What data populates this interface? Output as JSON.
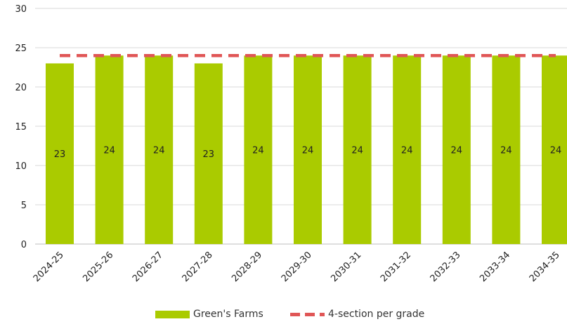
{
  "chart_data": {
    "type": "bar",
    "categories": [
      "2024-25",
      "2025-26",
      "2026-27",
      "2027-28",
      "2028-29",
      "2029-30",
      "2030-31",
      "2031-32",
      "2032-33",
      "2033-34",
      "2034-35"
    ],
    "series": [
      {
        "name": "Green's Farms",
        "kind": "bar",
        "color": "#aacb00",
        "values": [
          23,
          24,
          24,
          23,
          24,
          24,
          24,
          24,
          24,
          24,
          24
        ]
      },
      {
        "name": "4-section per grade",
        "kind": "dashed-line",
        "color": "#e05656",
        "values": [
          24,
          24,
          24,
          24,
          24,
          24,
          24,
          24,
          24,
          24,
          24
        ]
      }
    ],
    "data_labels": [
      "23",
      "24",
      "24",
      "23",
      "24",
      "24",
      "24",
      "24",
      "24",
      "24",
      "24"
    ],
    "ylim": [
      0,
      30
    ],
    "yticks": [
      "0",
      "5",
      "10",
      "15",
      "20",
      "25",
      "30"
    ],
    "grid": true,
    "legend_position": "bottom-center"
  }
}
